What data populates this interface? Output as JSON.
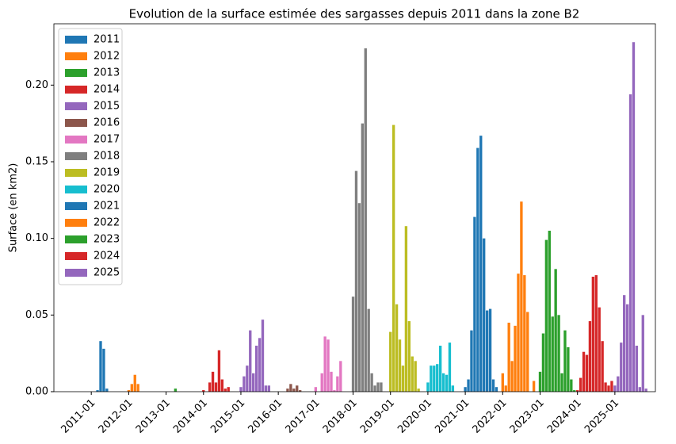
{
  "chart_data": {
    "type": "bar",
    "title": "Evolution de la surface estimée des sargasses depuis 2011 dans la zone B2",
    "y_label": "Surface (en km2)",
    "xlim": [
      "2010-01",
      "2026-02"
    ],
    "xticks": [
      "2011-01",
      "2012-01",
      "2013-01",
      "2014-01",
      "2015-01",
      "2016-01",
      "2017-01",
      "2018-01",
      "2019-01",
      "2020-01",
      "2021-01",
      "2022-01",
      "2023-01",
      "2024-01",
      "2025-01"
    ],
    "ylim": [
      0,
      0.24
    ],
    "yticks": [
      {
        "value": 0,
        "label": "0.00"
      },
      {
        "value": 0.05,
        "label": "0.05"
      },
      {
        "value": 0.1,
        "label": "0.10"
      },
      {
        "value": 0.15,
        "label": "0.15"
      },
      {
        "value": 0.2,
        "label": "0.20"
      }
    ],
    "grid": false,
    "legend": "upper left",
    "series": [
      {
        "name": "2011",
        "color": "#1f77b4",
        "x": [
          "2011-01",
          "2011-02",
          "2011-03",
          "2011-04",
          "2011-05",
          "2011-06",
          "2011-07",
          "2011-08",
          "2011-09",
          "2011-10",
          "2011-11",
          "2011-12"
        ],
        "values": [
          0,
          0,
          0.001,
          0.033,
          0.028,
          0.002,
          0,
          0,
          0,
          0,
          0,
          0
        ]
      },
      {
        "name": "2012",
        "color": "#ff7f0e",
        "x": [
          "2012-01",
          "2012-02",
          "2012-03",
          "2012-04",
          "2012-05",
          "2012-06",
          "2012-07",
          "2012-08",
          "2012-09",
          "2012-10",
          "2012-11",
          "2012-12"
        ],
        "values": [
          0.001,
          0.005,
          0.011,
          0.005,
          0,
          0,
          0,
          0,
          0,
          0,
          0,
          0
        ]
      },
      {
        "name": "2013",
        "color": "#2ca02c",
        "x": [
          "2013-01",
          "2013-02",
          "2013-03",
          "2013-04",
          "2013-05",
          "2013-06",
          "2013-07",
          "2013-08",
          "2013-09",
          "2013-10",
          "2013-11",
          "2013-12"
        ],
        "values": [
          0,
          0,
          0,
          0.002,
          0,
          0,
          0,
          0,
          0,
          0,
          0,
          0
        ]
      },
      {
        "name": "2014",
        "color": "#d62728",
        "x": [
          "2014-01",
          "2014-02",
          "2014-03",
          "2014-04",
          "2014-05",
          "2014-06",
          "2014-07",
          "2014-08",
          "2014-09",
          "2014-10",
          "2014-11",
          "2014-12"
        ],
        "values": [
          0.001,
          0,
          0.006,
          0.013,
          0.006,
          0.027,
          0.008,
          0.002,
          0.003,
          0,
          0,
          0
        ]
      },
      {
        "name": "2015",
        "color": "#9467bd",
        "x": [
          "2015-01",
          "2015-02",
          "2015-03",
          "2015-04",
          "2015-05",
          "2015-06",
          "2015-07",
          "2015-08",
          "2015-09",
          "2015-10",
          "2015-11",
          "2015-12"
        ],
        "values": [
          0.003,
          0.01,
          0.017,
          0.04,
          0.012,
          0.03,
          0.035,
          0.047,
          0.004,
          0.004,
          0,
          0
        ]
      },
      {
        "name": "2016",
        "color": "#8c564b",
        "x": [
          "2016-01",
          "2016-02",
          "2016-03",
          "2016-04",
          "2016-05",
          "2016-06",
          "2016-07",
          "2016-08",
          "2016-09",
          "2016-10",
          "2016-11",
          "2016-12"
        ],
        "values": [
          0,
          0,
          0,
          0.002,
          0.005,
          0.002,
          0.004,
          0.001,
          0,
          0,
          0,
          0
        ]
      },
      {
        "name": "2017",
        "color": "#e377c2",
        "x": [
          "2017-01",
          "2017-02",
          "2017-03",
          "2017-04",
          "2017-05",
          "2017-06",
          "2017-07",
          "2017-08",
          "2017-09",
          "2017-10",
          "2017-11",
          "2017-12"
        ],
        "values": [
          0.003,
          0,
          0.012,
          0.036,
          0.034,
          0.013,
          0.001,
          0.01,
          0.02,
          0,
          0,
          0
        ]
      },
      {
        "name": "2018",
        "color": "#7f7f7f",
        "x": [
          "2018-01",
          "2018-02",
          "2018-03",
          "2018-04",
          "2018-05",
          "2018-06",
          "2018-07",
          "2018-08",
          "2018-09",
          "2018-10",
          "2018-11",
          "2018-12"
        ],
        "values": [
          0.062,
          0.144,
          0.123,
          0.175,
          0.224,
          0.054,
          0.012,
          0.004,
          0.006,
          0.006,
          0,
          0
        ]
      },
      {
        "name": "2019",
        "color": "#bcbd22",
        "x": [
          "2019-01",
          "2019-02",
          "2019-03",
          "2019-04",
          "2019-05",
          "2019-06",
          "2019-07",
          "2019-08",
          "2019-09",
          "2019-10",
          "2019-11",
          "2019-12"
        ],
        "values": [
          0.039,
          0.174,
          0.057,
          0.034,
          0.017,
          0.108,
          0.046,
          0.023,
          0.02,
          0.002,
          0,
          0
        ]
      },
      {
        "name": "2020",
        "color": "#17becf",
        "x": [
          "2020-01",
          "2020-02",
          "2020-03",
          "2020-04",
          "2020-05",
          "2020-06",
          "2020-07",
          "2020-08",
          "2020-09",
          "2020-10",
          "2020-11",
          "2020-12"
        ],
        "values": [
          0.006,
          0.017,
          0.017,
          0.018,
          0.03,
          0.012,
          0.011,
          0.032,
          0.004,
          0,
          0,
          0
        ]
      },
      {
        "name": "2021",
        "color": "#1f77b4",
        "x": [
          "2021-01",
          "2021-02",
          "2021-03",
          "2021-04",
          "2021-05",
          "2021-06",
          "2021-07",
          "2021-08",
          "2021-09",
          "2021-10",
          "2021-11",
          "2021-12"
        ],
        "values": [
          0.003,
          0.008,
          0.04,
          0.114,
          0.159,
          0.167,
          0.1,
          0.053,
          0.054,
          0.008,
          0.003,
          0
        ]
      },
      {
        "name": "2022",
        "color": "#ff7f0e",
        "x": [
          "2022-01",
          "2022-02",
          "2022-03",
          "2022-04",
          "2022-05",
          "2022-06",
          "2022-07",
          "2022-08",
          "2022-09",
          "2022-10",
          "2022-11",
          "2022-12"
        ],
        "values": [
          0.012,
          0.004,
          0.045,
          0.02,
          0.043,
          0.077,
          0.124,
          0.076,
          0.052,
          0,
          0.007,
          0
        ]
      },
      {
        "name": "2023",
        "color": "#2ca02c",
        "x": [
          "2023-01",
          "2023-02",
          "2023-03",
          "2023-04",
          "2023-05",
          "2023-06",
          "2023-07",
          "2023-08",
          "2023-09",
          "2023-10",
          "2023-11",
          "2023-12"
        ],
        "values": [
          0.013,
          0.038,
          0.099,
          0.105,
          0.049,
          0.08,
          0.05,
          0.012,
          0.04,
          0.029,
          0.008,
          0.001
        ]
      },
      {
        "name": "2024",
        "color": "#d62728",
        "x": [
          "2024-01",
          "2024-02",
          "2024-03",
          "2024-04",
          "2024-05",
          "2024-06",
          "2024-07",
          "2024-08",
          "2024-09",
          "2024-10",
          "2024-11",
          "2024-12"
        ],
        "values": [
          0.001,
          0.009,
          0.026,
          0.024,
          0.046,
          0.075,
          0.076,
          0.055,
          0.033,
          0.006,
          0.004,
          0.007
        ]
      },
      {
        "name": "2025",
        "color": "#9467bd",
        "x": [
          "2025-01",
          "2025-02",
          "2025-03",
          "2025-04",
          "2025-05",
          "2025-06",
          "2025-07",
          "2025-08",
          "2025-09",
          "2025-10",
          "2025-11",
          "2025-12"
        ],
        "values": [
          0.004,
          0.01,
          0.032,
          0.063,
          0.057,
          0.194,
          0.228,
          0.03,
          0.003,
          0.05,
          0.002,
          0
        ]
      }
    ]
  }
}
